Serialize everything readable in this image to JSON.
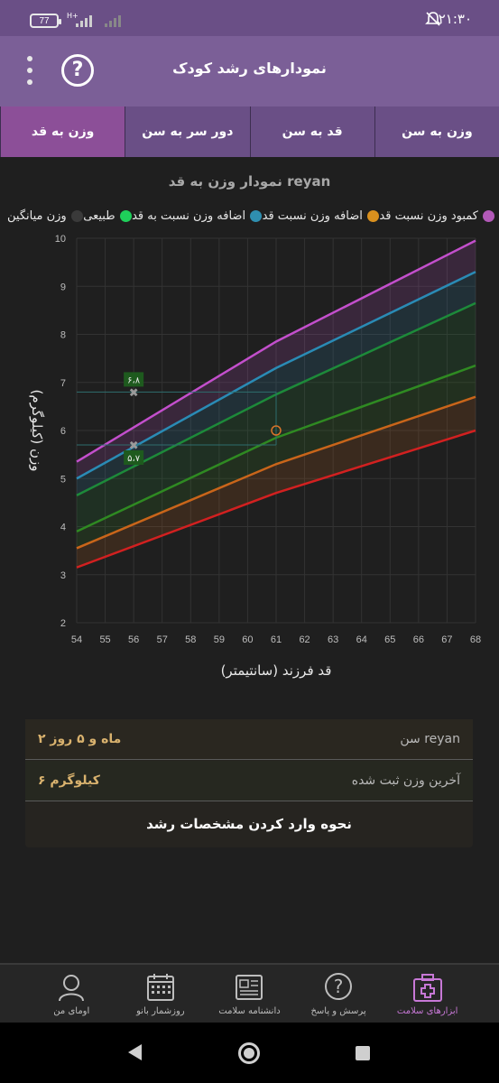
{
  "status_bar": {
    "time": "۲۱:۳۰",
    "battery": "77",
    "network": "H+"
  },
  "app_bar": {
    "title": "نمودارهای رشد کودک",
    "help_symbol": "?"
  },
  "tabs": [
    {
      "label": "وزن به سن",
      "active": false
    },
    {
      "label": "قد به سن",
      "active": false
    },
    {
      "label": "دور سر به سن",
      "active": false
    },
    {
      "label": "وزن به قد",
      "active": true
    }
  ],
  "chart_title": "نمودار وزن به قد reyan",
  "legend": [
    {
      "label": "کمبود وزن نسبت قد",
      "color": "#b259b8"
    },
    {
      "label": "اضافه وزن نسبت قد",
      "color": "#d9901e"
    },
    {
      "label": "اضافه وزن نسبت به قد",
      "color": "#2f8fb0"
    },
    {
      "label": "طبیعی",
      "color": "#1fcf5a"
    },
    {
      "label": "وزن میانگین",
      "color": "#3a3a3a"
    }
  ],
  "chart_data": {
    "type": "line",
    "xlabel": "قد فرزند (سانتیمتر)",
    "ylabel": "وزن (کیلوگرم)",
    "xlim": [
      54,
      68
    ],
    "ylim": [
      2,
      10
    ],
    "xticks": [
      "54",
      "55",
      "56",
      "57",
      "58",
      "59",
      "60",
      "61",
      "62",
      "63",
      "64",
      "65",
      "66",
      "67",
      "68"
    ],
    "yticks": [
      "2",
      "3",
      "4",
      "5",
      "6",
      "7",
      "8",
      "9",
      "10"
    ],
    "x": [
      54,
      61,
      68
    ],
    "series": [
      {
        "color": "#c34fcc",
        "values": [
          5.35,
          7.85,
          9.95
        ]
      },
      {
        "color": "#2a8bb5",
        "values": [
          5.0,
          7.3,
          9.3
        ]
      },
      {
        "color": "#1d8a3a",
        "values": [
          4.65,
          6.75,
          8.65
        ]
      },
      {
        "color": "#2f8a22",
        "values": [
          3.9,
          5.85,
          7.35
        ]
      },
      {
        "color": "#c9651a",
        "values": [
          3.55,
          5.3,
          6.7
        ]
      },
      {
        "color": "#d22020",
        "values": [
          3.15,
          4.7,
          6.0
        ]
      }
    ],
    "markers": [
      {
        "x": 56,
        "y": 6.8,
        "label": "۶،۸"
      },
      {
        "x": 56,
        "y": 5.7,
        "label": "۵،۷"
      }
    ],
    "point": {
      "x": 61,
      "y": 6.0
    }
  },
  "info": {
    "age_label": "سن reyan",
    "age_value": "۲ ماه و ۵ روز",
    "weight_label": "آخرین وزن ثبت شده",
    "weight_value": "۶ کیلوگرم",
    "how_to": "نحوه وارد کردن مشخصات رشد"
  },
  "bottom_nav": [
    {
      "label": "ابزارهای سلامت",
      "icon": "medkit-icon",
      "active": true
    },
    {
      "label": "پرسش و پاسخ",
      "icon": "question-icon",
      "active": false
    },
    {
      "label": "دانشنامه سلامت",
      "icon": "newspaper-icon",
      "active": false
    },
    {
      "label": "روزشمار بانو",
      "icon": "calendar-icon",
      "active": false
    },
    {
      "label": "اومای من",
      "icon": "profile-icon",
      "active": false
    }
  ]
}
